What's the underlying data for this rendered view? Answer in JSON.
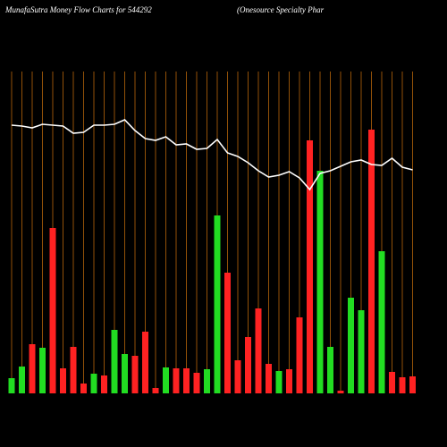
{
  "chart_data": {
    "type": "bar",
    "title": "MunafaSutra  Money Flow  Charts for 544292",
    "subtitle": "(Onesource    Specialty Phar",
    "categories": [
      null,
      null,
      null,
      null,
      null,
      null,
      null,
      null,
      null,
      null,
      null,
      null,
      null,
      null,
      null,
      null,
      null,
      null,
      null,
      null,
      null,
      null,
      null,
      null,
      null,
      null,
      null,
      null,
      null,
      null,
      null,
      null,
      null,
      null,
      null,
      null,
      null,
      null,
      null,
      null
    ],
    "series": [
      {
        "type": "bar",
        "values": [
          17,
          30,
          55,
          51,
          185,
          28,
          52,
          11,
          22,
          20,
          71,
          44,
          42,
          69,
          6,
          29,
          28,
          28,
          23,
          27,
          199,
          135,
          37,
          63,
          95,
          33,
          25,
          27,
          85,
          283,
          249,
          52,
          3,
          107,
          93,
          295,
          159,
          24,
          18,
          19
        ],
        "colors": [
          "#22dd22",
          "#22dd22",
          "#ff2222",
          "#22dd22",
          "#ff2222",
          "#ff2222",
          "#ff2222",
          "#ff2222",
          "#22dd22",
          "#ff2222",
          "#22dd22",
          "#22dd22",
          "#ff2222",
          "#ff2222",
          "#ff2222",
          "#22dd22",
          "#ff2222",
          "#ff2222",
          "#ff2222",
          "#22dd22",
          "#22dd22",
          "#ff2222",
          "#ff2222",
          "#ff2222",
          "#ff2222",
          "#ff2222",
          "#22dd22",
          "#ff2222",
          "#ff2222",
          "#ff2222",
          "#22dd22",
          "#22dd22",
          "#ff2222",
          "#22dd22",
          "#22dd22",
          "#ff2222",
          "#22dd22",
          "#ff2222",
          "#ff2222",
          "#ff2222"
        ]
      },
      {
        "type": "line",
        "color": "#ffffff",
        "values": [
          300,
          299,
          297,
          301,
          300,
          299,
          291,
          292,
          300,
          300,
          301,
          306,
          294,
          285,
          283,
          287,
          278,
          279,
          273,
          274,
          284,
          269,
          265,
          258,
          249,
          242,
          244,
          248,
          241,
          228,
          246,
          249,
          254,
          259,
          261,
          256,
          255,
          263,
          253,
          250
        ]
      }
    ],
    "ylim": [
      0,
      360
    ],
    "grid_color": "#b8660b"
  }
}
